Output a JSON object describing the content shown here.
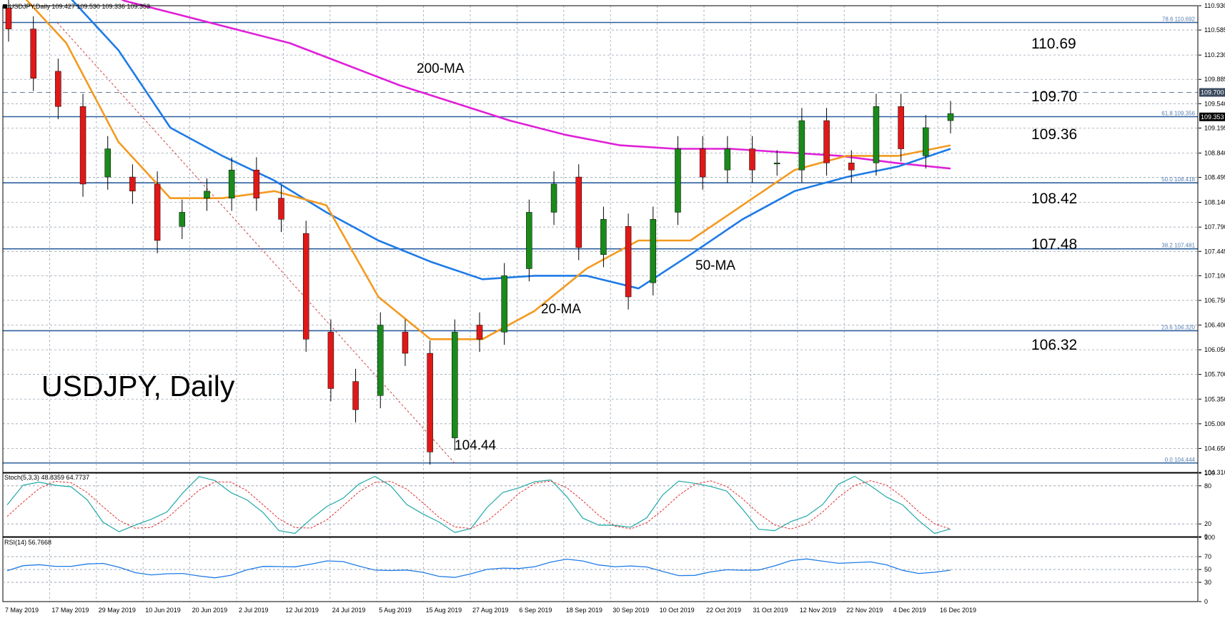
{
  "chart_data": {
    "type": "candlestick",
    "symbol_header": "USDJPY,Daily",
    "ohlc_header": "109.427 109.530 109.336 109.353",
    "title": "USDJPY, Daily",
    "y_axis_ticks": [
      "110.930",
      "110.585",
      "110.230",
      "109.885",
      "109.540",
      "109.195",
      "108.840",
      "108.495",
      "108.140",
      "107.790",
      "107.445",
      "107.100",
      "106.750",
      "106.400",
      "106.050",
      "105.700",
      "105.350",
      "105.000",
      "104.650",
      "104.310"
    ],
    "ylim": [
      104.31,
      110.93
    ],
    "x_axis_labels": [
      "7 May 2019",
      "17 May 2019",
      "29 May 2019",
      "10 Jun 2019",
      "20 Jun 2019",
      "2 Jul 2019",
      "12 Jul 2019",
      "24 Jul 2019",
      "5 Aug 2019",
      "15 Aug 2019",
      "27 Aug 2019",
      "6 Sep 2019",
      "18 Sep 2019",
      "30 Sep 2019",
      "10 Oct 2019",
      "22 Oct 2019",
      "31 Oct 2019",
      "12 Nov 2019",
      "22 Nov 2019",
      "4 Dec 2019",
      "16 Dec 2019"
    ],
    "levels": [
      {
        "label": "110.69",
        "fib": "78.6 110.692",
        "value": 110.692
      },
      {
        "label": "109.70",
        "value": 109.7,
        "dashed": true,
        "tag": "109.700"
      },
      {
        "label": "109.36",
        "fib": "61.8 109.356",
        "value": 109.356
      },
      {
        "label": "108.42",
        "fib": "50.0 108.418",
        "value": 108.418
      },
      {
        "label": "107.48",
        "fib": "38.2 107.481",
        "value": 107.481
      },
      {
        "label": "106.32",
        "fib": "23.6 106.320",
        "value": 106.32
      },
      {
        "label": "104.44",
        "fib": "0.0 104.444",
        "value": 104.444
      }
    ],
    "current_price_tag": "109.353",
    "annotations": {
      "ma200": "200-MA",
      "ma50": "50-MA",
      "ma20": "20-MA",
      "low": "104.44"
    },
    "ma200": [
      111.8,
      111.4,
      111.0,
      110.8,
      110.6,
      110.4,
      110.1,
      109.8,
      109.55,
      109.3,
      109.1,
      108.95,
      108.9,
      108.9,
      108.85,
      108.8,
      108.7,
      108.62
    ],
    "ma50": [
      111.5,
      111.1,
      110.3,
      109.2,
      108.8,
      108.45,
      108.0,
      107.6,
      107.3,
      107.05,
      107.1,
      107.1,
      106.92,
      107.4,
      107.9,
      108.3,
      108.5,
      108.65,
      108.9
    ],
    "ma20": [
      111.2,
      110.4,
      109.0,
      108.2,
      108.2,
      108.3,
      108.1,
      106.8,
      106.2,
      106.2,
      106.6,
      107.2,
      107.6,
      107.6,
      108.1,
      108.6,
      108.8,
      108.8,
      108.95
    ],
    "candles": [
      [
        110.9,
        110.6
      ],
      [
        110.6,
        109.9
      ],
      [
        110.0,
        109.5
      ],
      [
        109.5,
        108.4
      ],
      [
        108.5,
        108.9
      ],
      [
        108.5,
        108.3
      ],
      [
        108.4,
        107.6
      ],
      [
        107.8,
        108.0
      ],
      [
        108.2,
        108.3
      ],
      [
        108.2,
        108.6
      ],
      [
        108.6,
        108.2
      ],
      [
        108.2,
        107.9
      ],
      [
        107.7,
        106.2
      ],
      [
        106.3,
        105.5
      ],
      [
        105.6,
        105.2
      ],
      [
        105.4,
        106.4
      ],
      [
        106.3,
        106.0
      ],
      [
        106.0,
        104.6
      ],
      [
        104.8,
        106.3
      ],
      [
        106.4,
        106.2
      ],
      [
        106.3,
        107.1
      ],
      [
        107.2,
        108.0
      ],
      [
        108.0,
        108.4
      ],
      [
        108.5,
        107.5
      ],
      [
        107.4,
        107.9
      ],
      [
        107.8,
        106.8
      ],
      [
        107.0,
        107.9
      ],
      [
        108.0,
        108.9
      ],
      [
        108.9,
        108.5
      ],
      [
        108.6,
        108.9
      ],
      [
        108.9,
        108.6
      ],
      [
        108.7,
        108.7
      ],
      [
        108.6,
        109.3
      ],
      [
        109.3,
        108.7
      ],
      [
        108.7,
        108.6
      ],
      [
        108.7,
        109.5
      ],
      [
        109.5,
        108.9
      ],
      [
        108.8,
        109.2
      ],
      [
        109.3,
        109.4
      ]
    ],
    "stoch": {
      "label": "Stoch(5,3,3) 48.8359 64.7737",
      "ticks": [
        "100",
        "80",
        "20",
        "0"
      ]
    },
    "rsi": {
      "label": "RSI(14) 56.7668",
      "ticks": [
        "100",
        "70",
        "50",
        "30",
        "0"
      ]
    }
  }
}
